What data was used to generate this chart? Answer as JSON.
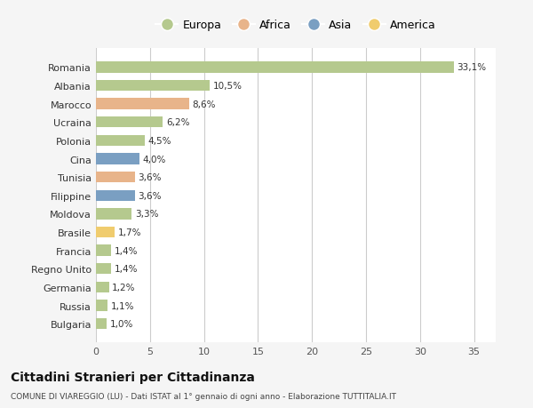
{
  "countries": [
    "Romania",
    "Albania",
    "Marocco",
    "Ucraina",
    "Polonia",
    "Cina",
    "Tunisia",
    "Filippine",
    "Moldova",
    "Brasile",
    "Francia",
    "Regno Unito",
    "Germania",
    "Russia",
    "Bulgaria"
  ],
  "values": [
    33.1,
    10.5,
    8.6,
    6.2,
    4.5,
    4.0,
    3.6,
    3.6,
    3.3,
    1.7,
    1.4,
    1.4,
    1.2,
    1.1,
    1.0
  ],
  "labels": [
    "33,1%",
    "10,5%",
    "8,6%",
    "6,2%",
    "4,5%",
    "4,0%",
    "3,6%",
    "3,6%",
    "3,3%",
    "1,7%",
    "1,4%",
    "1,4%",
    "1,2%",
    "1,1%",
    "1,0%"
  ],
  "categories": [
    "Europa",
    "Europa",
    "Africa",
    "Europa",
    "Europa",
    "Asia",
    "Africa",
    "Asia",
    "Europa",
    "America",
    "Europa",
    "Europa",
    "Europa",
    "Europa",
    "Europa"
  ],
  "colors": {
    "Europa": "#b5c98e",
    "Africa": "#e8b48a",
    "Asia": "#7a9fc2",
    "America": "#f0cc6e"
  },
  "legend_order": [
    "Europa",
    "Africa",
    "Asia",
    "America"
  ],
  "xlim": [
    0,
    37
  ],
  "xticks": [
    0,
    5,
    10,
    15,
    20,
    25,
    30,
    35
  ],
  "title": "Cittadini Stranieri per Cittadinanza",
  "subtitle": "COMUNE DI VIAREGGIO (LU) - Dati ISTAT al 1° gennaio di ogni anno - Elaborazione TUTTITALIA.IT",
  "background_color": "#f5f5f5",
  "plot_background": "#ffffff",
  "bar_height": 0.6,
  "grid_color": "#cccccc"
}
